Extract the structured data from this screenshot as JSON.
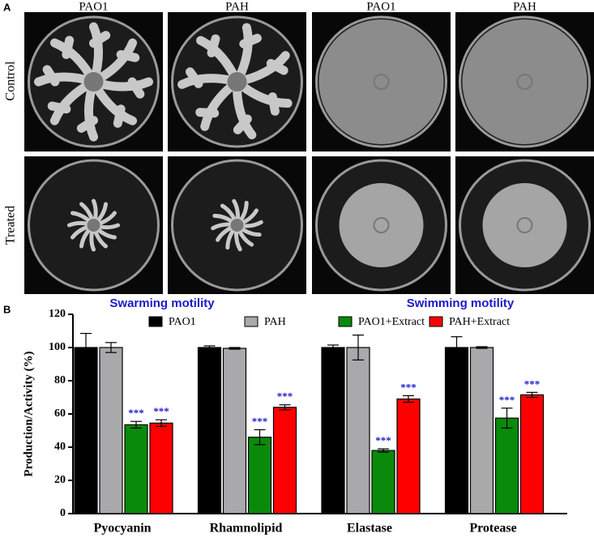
{
  "panel_a": {
    "label": "A",
    "columns": [
      "PAO1",
      "PAH",
      "PAO1",
      "PAH"
    ],
    "rows": [
      "Control",
      "Treated"
    ],
    "captions": [
      "Swarming motility",
      "Swimming motility"
    ]
  },
  "chart_data": {
    "type": "bar",
    "label": "B",
    "y_label": "Production/Activity (%)",
    "categories": [
      "Pyocyanin",
      "Rhamnolipid",
      "Elastase",
      "Protease"
    ],
    "series": [
      {
        "name": "PAO1",
        "color": "#000000",
        "values": [
          100,
          100,
          100,
          100
        ],
        "errors": [
          8.5,
          1,
          1.5,
          6.5
        ]
      },
      {
        "name": "PAH",
        "color": "#a9a9ab",
        "values": [
          100,
          99.5,
          100,
          100
        ],
        "errors": [
          3,
          0.5,
          7.5,
          0.5
        ]
      },
      {
        "name": "PAO1+Extract",
        "color": "#0a8a0a",
        "values": [
          53.5,
          46,
          38,
          57.5
        ],
        "errors": [
          2,
          4.5,
          1,
          6
        ],
        "significance": [
          "***",
          "***",
          "***",
          "***"
        ]
      },
      {
        "name": "PAH+Extract",
        "color": "#ff0000",
        "values": [
          54.5,
          64,
          69,
          71.5
        ],
        "errors": [
          2,
          1.5,
          2,
          1.5
        ],
        "significance": [
          "***",
          "***",
          "***",
          "***"
        ]
      }
    ],
    "ylim": [
      0,
      120
    ],
    "yticks": [
      0,
      20,
      40,
      60,
      80,
      100,
      120
    ],
    "legend": "top"
  }
}
